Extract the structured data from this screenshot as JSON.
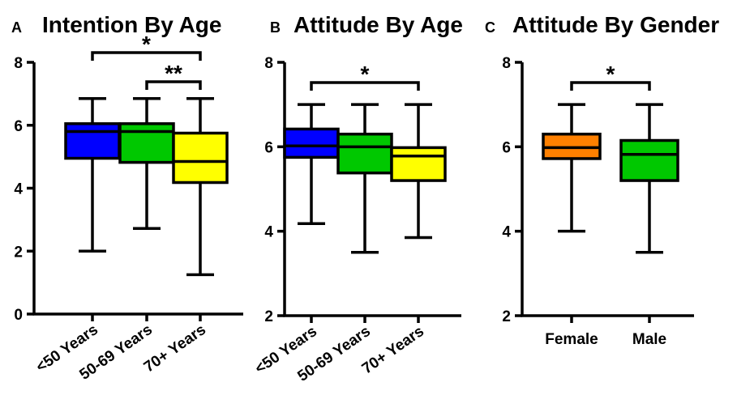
{
  "chart_data": [
    {
      "type": "box",
      "panel_label": "A",
      "title": "Intention By Age",
      "xlabel": "",
      "ylabel": "",
      "ylim": [
        0,
        8
      ],
      "yticks": [
        "0",
        "2",
        "4",
        "6",
        "8"
      ],
      "categories": [
        "<50 Years",
        "50-69 Years",
        "70+ Years"
      ],
      "boxes": [
        {
          "category": "<50 Years",
          "min": 2.0,
          "q1": 4.95,
          "median": 5.8,
          "q3": 6.05,
          "max": 6.85,
          "color": "#0000ff"
        },
        {
          "category": "50-69 Years",
          "min": 2.72,
          "q1": 4.82,
          "median": 5.8,
          "q3": 6.05,
          "max": 6.85,
          "color": "#00c800"
        },
        {
          "category": "70+ Years",
          "min": 1.25,
          "q1": 4.18,
          "median": 4.85,
          "q3": 5.75,
          "max": 6.85,
          "color": "#ffff00"
        }
      ],
      "annotations": [
        {
          "from": "<50 Years",
          "to": "70+ Years",
          "label": "*"
        },
        {
          "from": "50-69 Years",
          "to": "70+ Years",
          "label": "**"
        }
      ]
    },
    {
      "type": "box",
      "panel_label": "B",
      "title": "Attitude By Age",
      "xlabel": "",
      "ylabel": "",
      "ylim": [
        2,
        8
      ],
      "yticks": [
        "2",
        "4",
        "6",
        "8"
      ],
      "categories": [
        "<50 Years",
        "50-69 Years",
        "70+ Years"
      ],
      "boxes": [
        {
          "category": "<50 Years",
          "min": 4.18,
          "q1": 5.75,
          "median": 6.02,
          "q3": 6.42,
          "max": 7.0,
          "color": "#0000ff"
        },
        {
          "category": "50-69 Years",
          "min": 3.5,
          "q1": 5.38,
          "median": 6.0,
          "q3": 6.3,
          "max": 7.0,
          "color": "#00c800"
        },
        {
          "category": "70+ Years",
          "min": 3.85,
          "q1": 5.2,
          "median": 5.78,
          "q3": 5.98,
          "max": 7.0,
          "color": "#ffff00"
        }
      ],
      "annotations": [
        {
          "from": "<50 Years",
          "to": "70+ Years",
          "label": "*"
        }
      ]
    },
    {
      "type": "box",
      "panel_label": "C",
      "title": "Attitude By Gender",
      "xlabel": "",
      "ylabel": "",
      "ylim": [
        2,
        8
      ],
      "yticks": [
        "2",
        "4",
        "6",
        "8"
      ],
      "categories": [
        "Female",
        "Male"
      ],
      "boxes": [
        {
          "category": "Female",
          "min": 4.0,
          "q1": 5.72,
          "median": 5.98,
          "q3": 6.3,
          "max": 7.0,
          "color": "#ff8000"
        },
        {
          "category": "Male",
          "min": 3.5,
          "q1": 5.2,
          "median": 5.82,
          "q3": 6.15,
          "max": 7.0,
          "color": "#00c800"
        }
      ],
      "annotations": [
        {
          "from": "Female",
          "to": "Male",
          "label": "*"
        }
      ]
    }
  ]
}
